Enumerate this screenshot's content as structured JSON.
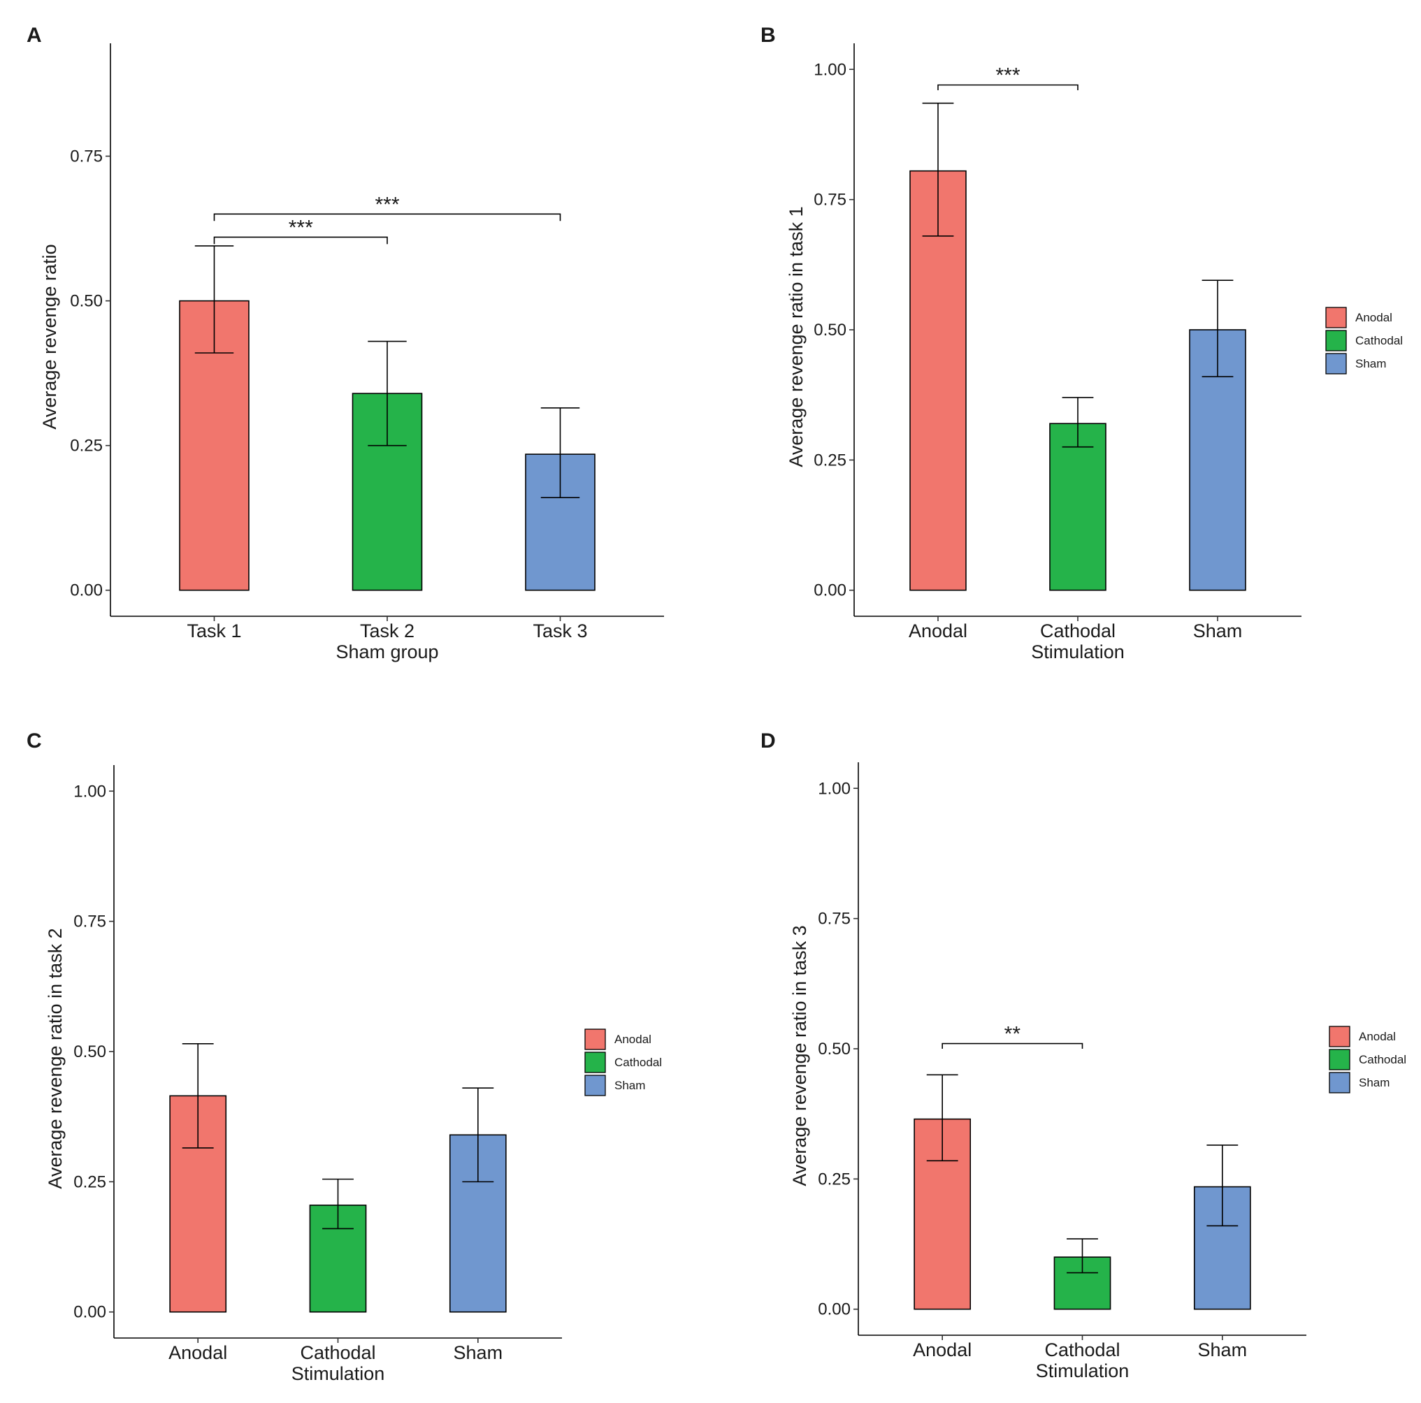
{
  "colors": {
    "Anodal": "#f1766d",
    "Cathodal": "#25b34a",
    "Sham": "#7097cf",
    "Task 1": "#f1766d",
    "Task 2": "#25b34a",
    "Task 3": "#7097cf"
  },
  "chart_data": [
    {
      "panel": "A",
      "type": "bar",
      "title": "",
      "xlabel": "Sham group",
      "ylabel": "Average revenge ratio",
      "categories": [
        "Task 1",
        "Task 2",
        "Task 3"
      ],
      "values": [
        0.5,
        0.34,
        0.235
      ],
      "error_lower": [
        0.41,
        0.25,
        0.16
      ],
      "error_upper": [
        0.595,
        0.43,
        0.315
      ],
      "ylim": [
        -0.045,
        0.945
      ],
      "yticks": [
        0.0,
        0.25,
        0.5,
        0.75
      ],
      "ytick_labels": [
        "0.00",
        "0.25",
        "0.50",
        "0.75"
      ],
      "significance": [
        {
          "from": "Task 1",
          "to": "Task 2",
          "label": "***",
          "y": 0.61,
          "drop": 0.012
        },
        {
          "from": "Task 1",
          "to": "Task 3",
          "label": "***",
          "y": 0.65,
          "drop": 0.012
        }
      ],
      "legend": null
    },
    {
      "panel": "B",
      "type": "bar",
      "title": "",
      "xlabel": "Stimulation",
      "ylabel": "Average revenge ratio in task 1",
      "categories": [
        "Anodal",
        "Cathodal",
        "Sham"
      ],
      "values": [
        0.805,
        0.32,
        0.5
      ],
      "error_lower": [
        0.68,
        0.275,
        0.41
      ],
      "error_upper": [
        0.935,
        0.37,
        0.595
      ],
      "ylim": [
        -0.05,
        1.05
      ],
      "yticks": [
        0.0,
        0.25,
        0.5,
        0.75,
        1.0
      ],
      "ytick_labels": [
        "0.00",
        "0.25",
        "0.50",
        "0.75",
        "1.00"
      ],
      "significance": [
        {
          "from": "Anodal",
          "to": "Cathodal",
          "label": "***",
          "y": 0.97,
          "drop": 0.01
        }
      ],
      "legend": {
        "entries": [
          "Anodal",
          "Cathodal",
          "Sham"
        ],
        "position": "right"
      }
    },
    {
      "panel": "C",
      "type": "bar",
      "title": "",
      "xlabel": "Stimulation",
      "ylabel": "Average revenge ratio in task 2",
      "categories": [
        "Anodal",
        "Cathodal",
        "Sham"
      ],
      "values": [
        0.415,
        0.205,
        0.34
      ],
      "error_lower": [
        0.315,
        0.16,
        0.25
      ],
      "error_upper": [
        0.515,
        0.255,
        0.43
      ],
      "ylim": [
        -0.05,
        1.05
      ],
      "yticks": [
        0.0,
        0.25,
        0.5,
        0.75,
        1.0
      ],
      "ytick_labels": [
        "0.00",
        "0.25",
        "0.50",
        "0.75",
        "1.00"
      ],
      "significance": [],
      "legend": {
        "entries": [
          "Anodal",
          "Cathodal",
          "Sham"
        ],
        "position": "right"
      }
    },
    {
      "panel": "D",
      "type": "bar",
      "title": "",
      "xlabel": "Stimulation",
      "ylabel": "Average revenge ratio in task 3",
      "categories": [
        "Anodal",
        "Cathodal",
        "Sham"
      ],
      "values": [
        0.365,
        0.1,
        0.235
      ],
      "error_lower": [
        0.285,
        0.07,
        0.16
      ],
      "error_upper": [
        0.45,
        0.135,
        0.315
      ],
      "ylim": [
        -0.05,
        1.05
      ],
      "yticks": [
        0.0,
        0.25,
        0.5,
        0.75,
        1.0
      ],
      "ytick_labels": [
        "0.00",
        "0.25",
        "0.50",
        "0.75",
        "1.00"
      ],
      "significance": [
        {
          "from": "Anodal",
          "to": "Cathodal",
          "label": "**",
          "y": 0.51,
          "drop": 0.01
        }
      ],
      "legend": {
        "entries": [
          "Anodal",
          "Cathodal",
          "Sham"
        ],
        "position": "right"
      }
    }
  ]
}
